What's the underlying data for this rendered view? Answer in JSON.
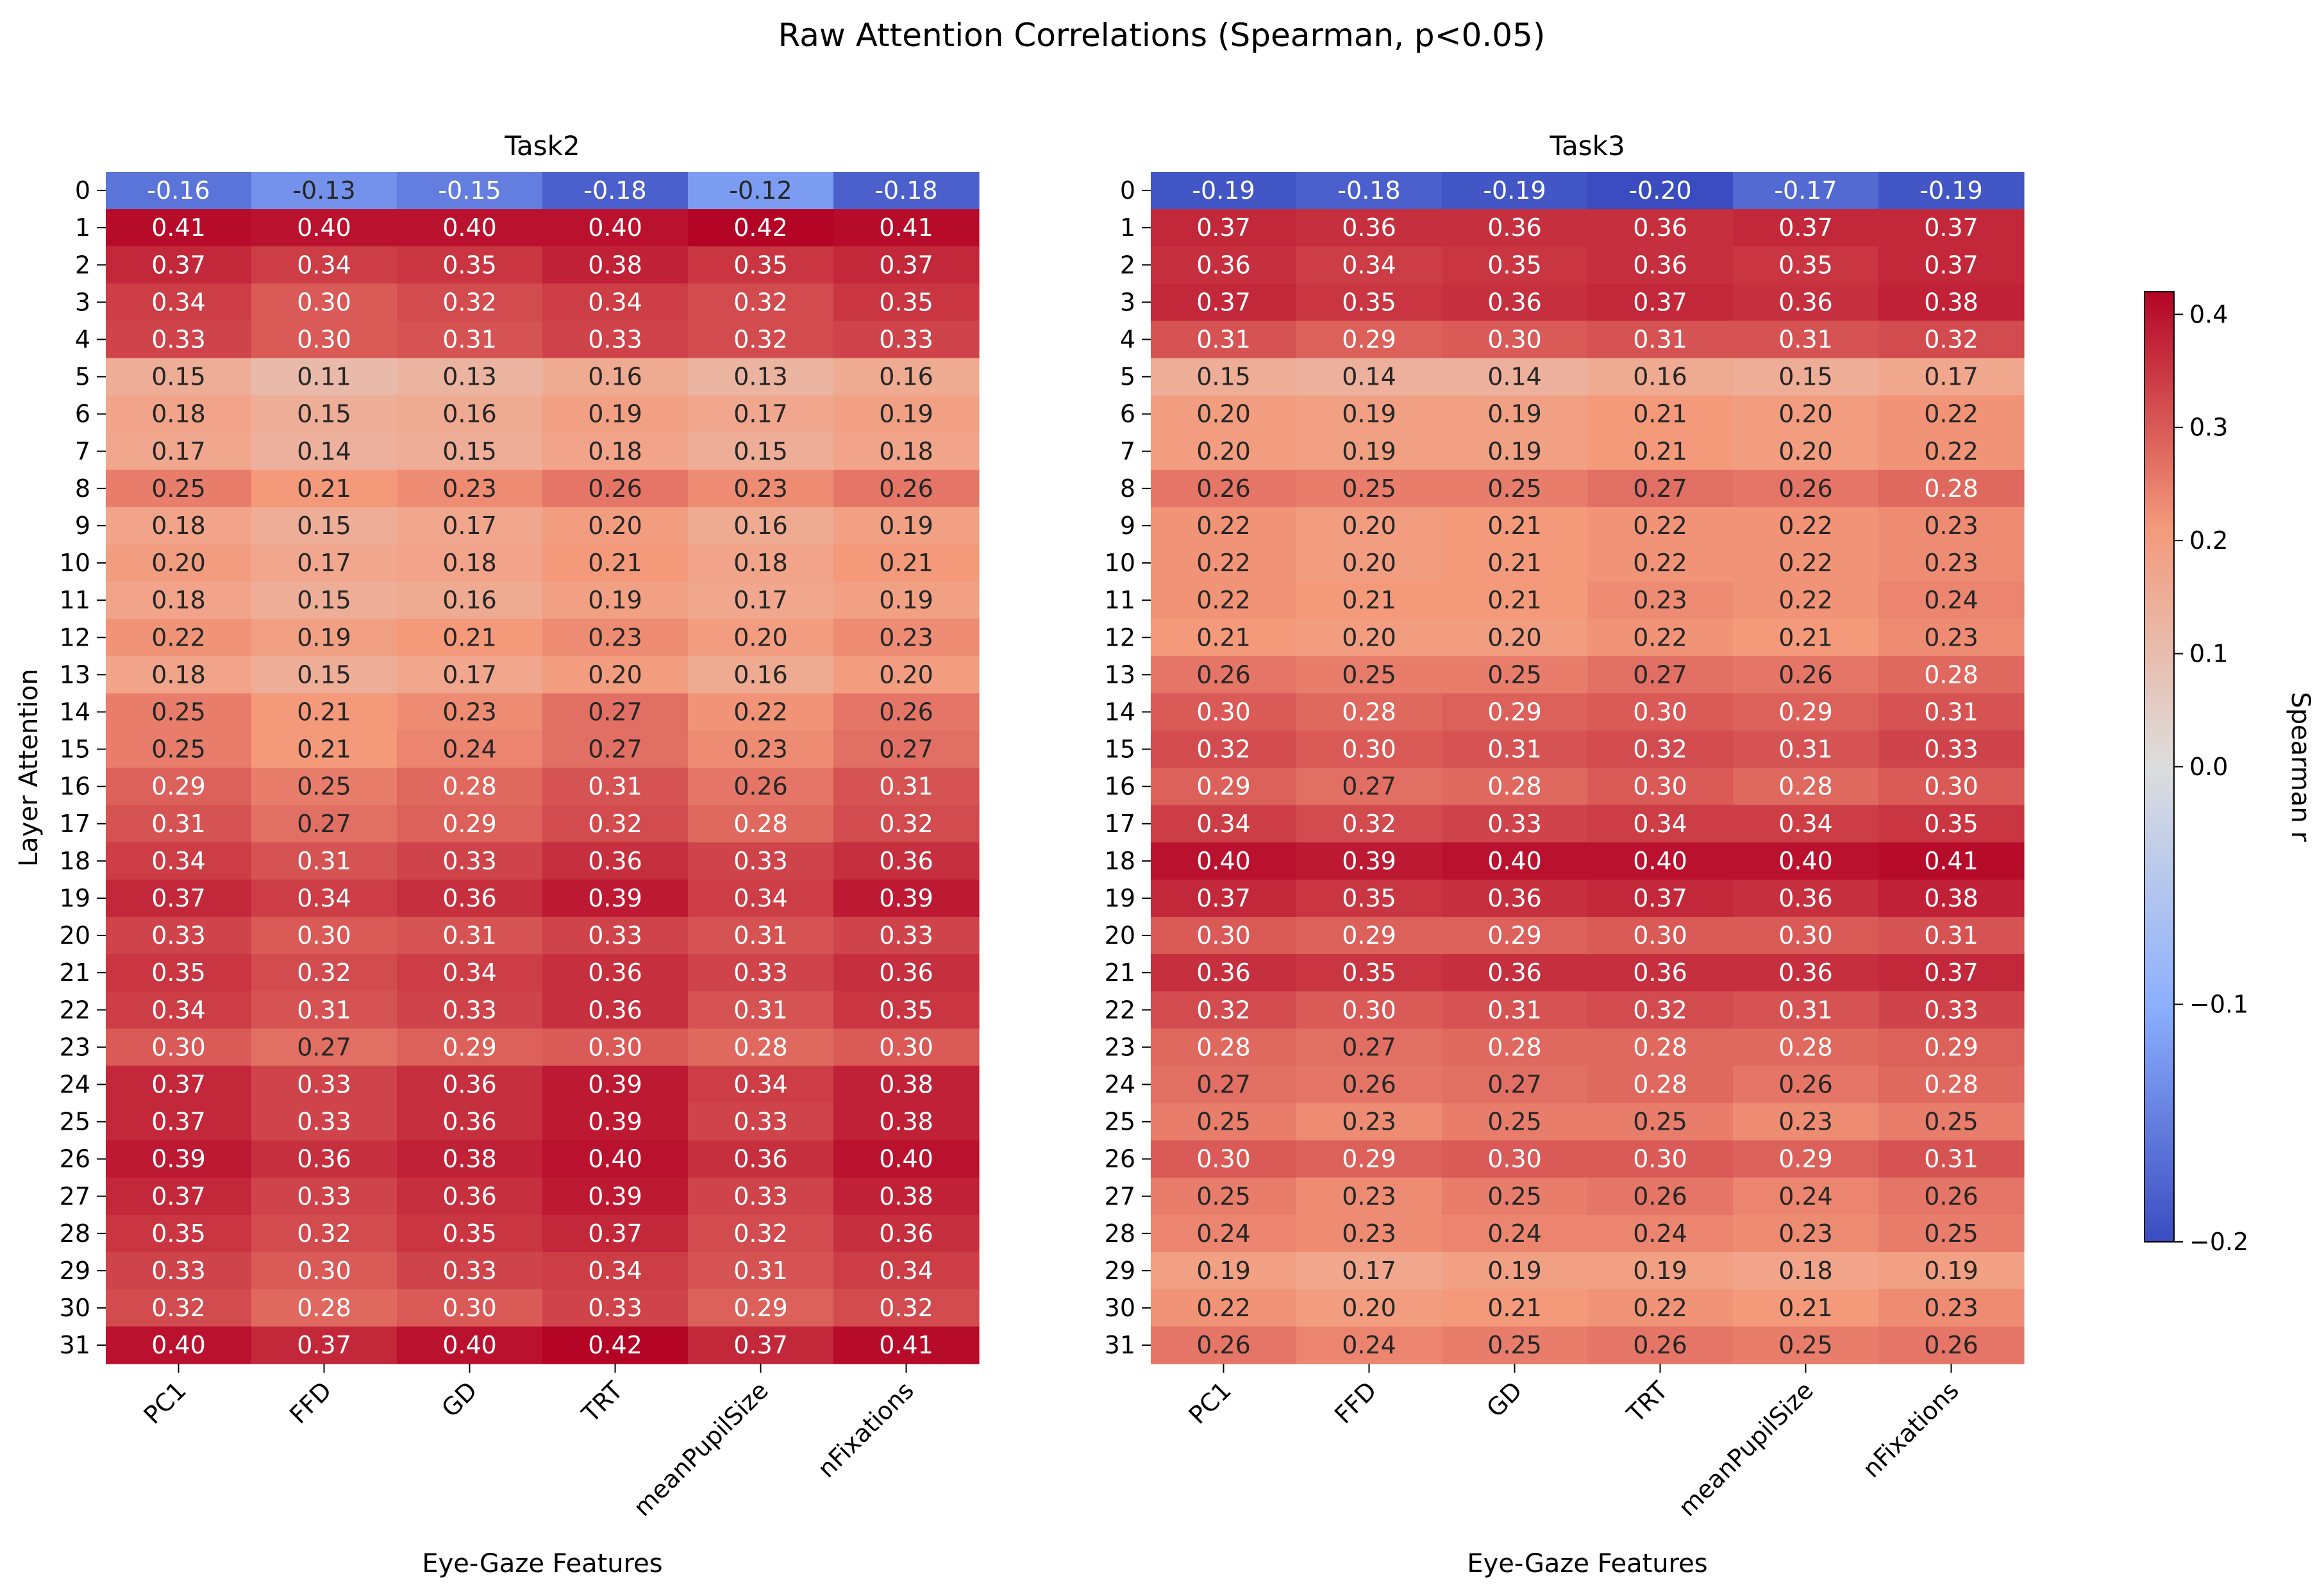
{
  "figure": {
    "title": "Raw Attention Correlations (Spearman, p<0.05)"
  },
  "chart_data": [
    {
      "type": "heatmap",
      "title": "Task2",
      "xlabel": "Eye-Gaze Features",
      "ylabel": "Layer Attention",
      "x": [
        "PC1",
        "FFD",
        "GD",
        "TRT",
        "meanPupilSize",
        "nFixations"
      ],
      "y": [
        "0",
        "1",
        "2",
        "3",
        "4",
        "5",
        "6",
        "7",
        "8",
        "9",
        "10",
        "11",
        "12",
        "13",
        "14",
        "15",
        "16",
        "17",
        "18",
        "19",
        "20",
        "21",
        "22",
        "23",
        "24",
        "25",
        "26",
        "27",
        "28",
        "29",
        "30",
        "31"
      ],
      "values": [
        [
          -0.16,
          -0.13,
          -0.15,
          -0.18,
          -0.12,
          -0.18
        ],
        [
          0.41,
          0.4,
          0.4,
          0.4,
          0.42,
          0.41
        ],
        [
          0.37,
          0.34,
          0.35,
          0.38,
          0.35,
          0.37
        ],
        [
          0.34,
          0.3,
          0.32,
          0.34,
          0.32,
          0.35
        ],
        [
          0.33,
          0.3,
          0.31,
          0.33,
          0.32,
          0.33
        ],
        [
          0.15,
          0.11,
          0.13,
          0.16,
          0.13,
          0.16
        ],
        [
          0.18,
          0.15,
          0.16,
          0.19,
          0.17,
          0.19
        ],
        [
          0.17,
          0.14,
          0.15,
          0.18,
          0.15,
          0.18
        ],
        [
          0.25,
          0.21,
          0.23,
          0.26,
          0.23,
          0.26
        ],
        [
          0.18,
          0.15,
          0.17,
          0.2,
          0.16,
          0.19
        ],
        [
          0.2,
          0.17,
          0.18,
          0.21,
          0.18,
          0.21
        ],
        [
          0.18,
          0.15,
          0.16,
          0.19,
          0.17,
          0.19
        ],
        [
          0.22,
          0.19,
          0.21,
          0.23,
          0.2,
          0.23
        ],
        [
          0.18,
          0.15,
          0.17,
          0.2,
          0.16,
          0.2
        ],
        [
          0.25,
          0.21,
          0.23,
          0.27,
          0.22,
          0.26
        ],
        [
          0.25,
          0.21,
          0.24,
          0.27,
          0.23,
          0.27
        ],
        [
          0.29,
          0.25,
          0.28,
          0.31,
          0.26,
          0.31
        ],
        [
          0.31,
          0.27,
          0.29,
          0.32,
          0.28,
          0.32
        ],
        [
          0.34,
          0.31,
          0.33,
          0.36,
          0.33,
          0.36
        ],
        [
          0.37,
          0.34,
          0.36,
          0.39,
          0.34,
          0.39
        ],
        [
          0.33,
          0.3,
          0.31,
          0.33,
          0.31,
          0.33
        ],
        [
          0.35,
          0.32,
          0.34,
          0.36,
          0.33,
          0.36
        ],
        [
          0.34,
          0.31,
          0.33,
          0.36,
          0.31,
          0.35
        ],
        [
          0.3,
          0.27,
          0.29,
          0.3,
          0.28,
          0.3
        ],
        [
          0.37,
          0.33,
          0.36,
          0.39,
          0.34,
          0.38
        ],
        [
          0.37,
          0.33,
          0.36,
          0.39,
          0.33,
          0.38
        ],
        [
          0.39,
          0.36,
          0.38,
          0.4,
          0.36,
          0.4
        ],
        [
          0.37,
          0.33,
          0.36,
          0.39,
          0.33,
          0.38
        ],
        [
          0.35,
          0.32,
          0.35,
          0.37,
          0.32,
          0.36
        ],
        [
          0.33,
          0.3,
          0.33,
          0.34,
          0.31,
          0.34
        ],
        [
          0.32,
          0.28,
          0.3,
          0.33,
          0.29,
          0.32
        ],
        [
          0.4,
          0.37,
          0.4,
          0.42,
          0.37,
          0.41
        ]
      ]
    },
    {
      "type": "heatmap",
      "title": "Task3",
      "xlabel": "Eye-Gaze Features",
      "ylabel": "",
      "x": [
        "PC1",
        "FFD",
        "GD",
        "TRT",
        "meanPupilSize",
        "nFixations"
      ],
      "y": [
        "0",
        "1",
        "2",
        "3",
        "4",
        "5",
        "6",
        "7",
        "8",
        "9",
        "10",
        "11",
        "12",
        "13",
        "14",
        "15",
        "16",
        "17",
        "18",
        "19",
        "20",
        "21",
        "22",
        "23",
        "24",
        "25",
        "26",
        "27",
        "28",
        "29",
        "30",
        "31"
      ],
      "values": [
        [
          -0.19,
          -0.18,
          -0.19,
          -0.2,
          -0.17,
          -0.19
        ],
        [
          0.37,
          0.36,
          0.36,
          0.36,
          0.37,
          0.37
        ],
        [
          0.36,
          0.34,
          0.35,
          0.36,
          0.35,
          0.37
        ],
        [
          0.37,
          0.35,
          0.36,
          0.37,
          0.36,
          0.38
        ],
        [
          0.31,
          0.29,
          0.3,
          0.31,
          0.31,
          0.32
        ],
        [
          0.15,
          0.14,
          0.14,
          0.16,
          0.15,
          0.17
        ],
        [
          0.2,
          0.19,
          0.19,
          0.21,
          0.2,
          0.22
        ],
        [
          0.2,
          0.19,
          0.19,
          0.21,
          0.2,
          0.22
        ],
        [
          0.26,
          0.25,
          0.25,
          0.27,
          0.26,
          0.28
        ],
        [
          0.22,
          0.2,
          0.21,
          0.22,
          0.22,
          0.23
        ],
        [
          0.22,
          0.2,
          0.21,
          0.22,
          0.22,
          0.23
        ],
        [
          0.22,
          0.21,
          0.21,
          0.23,
          0.22,
          0.24
        ],
        [
          0.21,
          0.2,
          0.2,
          0.22,
          0.21,
          0.23
        ],
        [
          0.26,
          0.25,
          0.25,
          0.27,
          0.26,
          0.28
        ],
        [
          0.3,
          0.28,
          0.29,
          0.3,
          0.29,
          0.31
        ],
        [
          0.32,
          0.3,
          0.31,
          0.32,
          0.31,
          0.33
        ],
        [
          0.29,
          0.27,
          0.28,
          0.3,
          0.28,
          0.3
        ],
        [
          0.34,
          0.32,
          0.33,
          0.34,
          0.34,
          0.35
        ],
        [
          0.4,
          0.39,
          0.4,
          0.4,
          0.4,
          0.41
        ],
        [
          0.37,
          0.35,
          0.36,
          0.37,
          0.36,
          0.38
        ],
        [
          0.3,
          0.29,
          0.29,
          0.3,
          0.3,
          0.31
        ],
        [
          0.36,
          0.35,
          0.36,
          0.36,
          0.36,
          0.37
        ],
        [
          0.32,
          0.3,
          0.31,
          0.32,
          0.31,
          0.33
        ],
        [
          0.28,
          0.27,
          0.28,
          0.28,
          0.28,
          0.29
        ],
        [
          0.27,
          0.26,
          0.27,
          0.28,
          0.26,
          0.28
        ],
        [
          0.25,
          0.23,
          0.25,
          0.25,
          0.23,
          0.25
        ],
        [
          0.3,
          0.29,
          0.3,
          0.3,
          0.29,
          0.31
        ],
        [
          0.25,
          0.23,
          0.25,
          0.26,
          0.24,
          0.26
        ],
        [
          0.24,
          0.23,
          0.24,
          0.24,
          0.23,
          0.25
        ],
        [
          0.19,
          0.17,
          0.19,
          0.19,
          0.18,
          0.19
        ],
        [
          0.22,
          0.2,
          0.21,
          0.22,
          0.21,
          0.23
        ],
        [
          0.26,
          0.24,
          0.25,
          0.26,
          0.25,
          0.26
        ]
      ]
    }
  ],
  "colorbar": {
    "label": "Spearman r",
    "colormap": "coolwarm",
    "range": [
      -0.2,
      0.42
    ],
    "ticks": [
      -0.2,
      -0.1,
      0.0,
      0.1,
      0.2,
      0.3,
      0.4
    ],
    "tick_labels": [
      "−0.2",
      "−0.1",
      "0.0",
      "0.1",
      "0.2",
      "0.3",
      "0.4"
    ]
  }
}
